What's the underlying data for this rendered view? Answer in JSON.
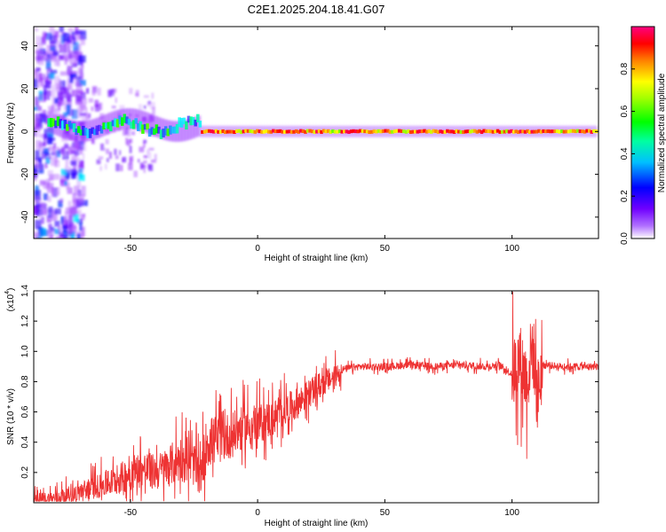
{
  "figure_title": "C2E1.2025.204.18.41.G07",
  "chart_data": [
    {
      "type": "heatmap",
      "title": "C2E1.2025.204.18.41.G07",
      "xlabel": "Height of straight line (km)",
      "ylabel": "Frequency (Hz)",
      "xlim": [
        -88,
        134
      ],
      "ylim": [
        -50,
        49
      ],
      "xticks": [
        -50,
        0,
        50,
        100
      ],
      "xtick_labels": [
        "-50",
        "0",
        "50",
        "100"
      ],
      "yticks": [
        -40,
        -20,
        0,
        20,
        40
      ],
      "ytick_labels": [
        "-40",
        "-20",
        "0",
        "20",
        "40"
      ],
      "grid": false,
      "colorbar": {
        "label": "Normalized spectral amplitude",
        "range": [
          0,
          1
        ],
        "ticks": [
          0.0,
          0.2,
          0.4,
          0.6,
          0.8
        ],
        "tick_labels": [
          "0.0",
          "0.2",
          "0.4",
          "0.6",
          "0.8"
        ],
        "colors": [
          "#ffffff",
          "#8000ff",
          "#0000ff",
          "#00ffff",
          "#00ff00",
          "#ffff00",
          "#ff8000",
          "#ff0000",
          "#ff0080"
        ]
      },
      "description_points": [
        {
          "x_range": [
            -88,
            -70
          ],
          "freq_range": [
            -50,
            49
          ],
          "amplitude": 0.15
        },
        {
          "x_range": [
            -70,
            -22
          ],
          "freq_center": 3,
          "amplitude": 0.4
        },
        {
          "x_range": [
            -22,
            134
          ],
          "freq_center": 0,
          "amplitude": 0.7
        }
      ]
    },
    {
      "type": "line",
      "xlabel": "Height of straight line (km)",
      "ylabel": "SNR (10 * v/v)",
      "y_scale_label": "(x10",
      "y_scale_exp": "4",
      "xlim": [
        -88,
        134
      ],
      "ylim": [
        0,
        1.4
      ],
      "xticks": [
        -50,
        0,
        50,
        100
      ],
      "xtick_labels": [
        "-50",
        "0",
        "50",
        "100"
      ],
      "yticks": [
        0.2,
        0.4,
        0.6,
        0.8,
        1.0,
        1.2,
        1.4
      ],
      "ytick_labels": [
        "0.2",
        "0.4",
        "0.6",
        "0.8",
        "1.0",
        "1.2",
        "1.4"
      ],
      "grid": false,
      "series": [
        {
          "color": "#ee3333",
          "x": [
            -88,
            -80,
            -75,
            -70,
            -65,
            -60,
            -55,
            -50,
            -45,
            -40,
            -35,
            -30,
            -25,
            -22,
            -20,
            -15,
            -10,
            -5,
            0,
            5,
            10,
            15,
            20,
            25,
            30,
            33,
            40,
            50,
            60,
            70,
            80,
            90,
            95,
            100,
            103,
            106,
            108,
            110,
            112,
            120,
            134
          ],
          "y": [
            0.02,
            0.03,
            0.05,
            0.07,
            0.1,
            0.12,
            0.15,
            0.2,
            0.22,
            0.2,
            0.24,
            0.3,
            0.25,
            0.18,
            0.4,
            0.42,
            0.45,
            0.5,
            0.52,
            0.55,
            0.6,
            0.65,
            0.72,
            0.78,
            0.83,
            0.88,
            0.9,
            0.9,
            0.91,
            0.9,
            0.91,
            0.9,
            0.91,
            0.85,
            0.95,
            0.8,
            1.05,
            0.7,
            0.91,
            0.9,
            0.9
          ]
        }
      ]
    }
  ]
}
